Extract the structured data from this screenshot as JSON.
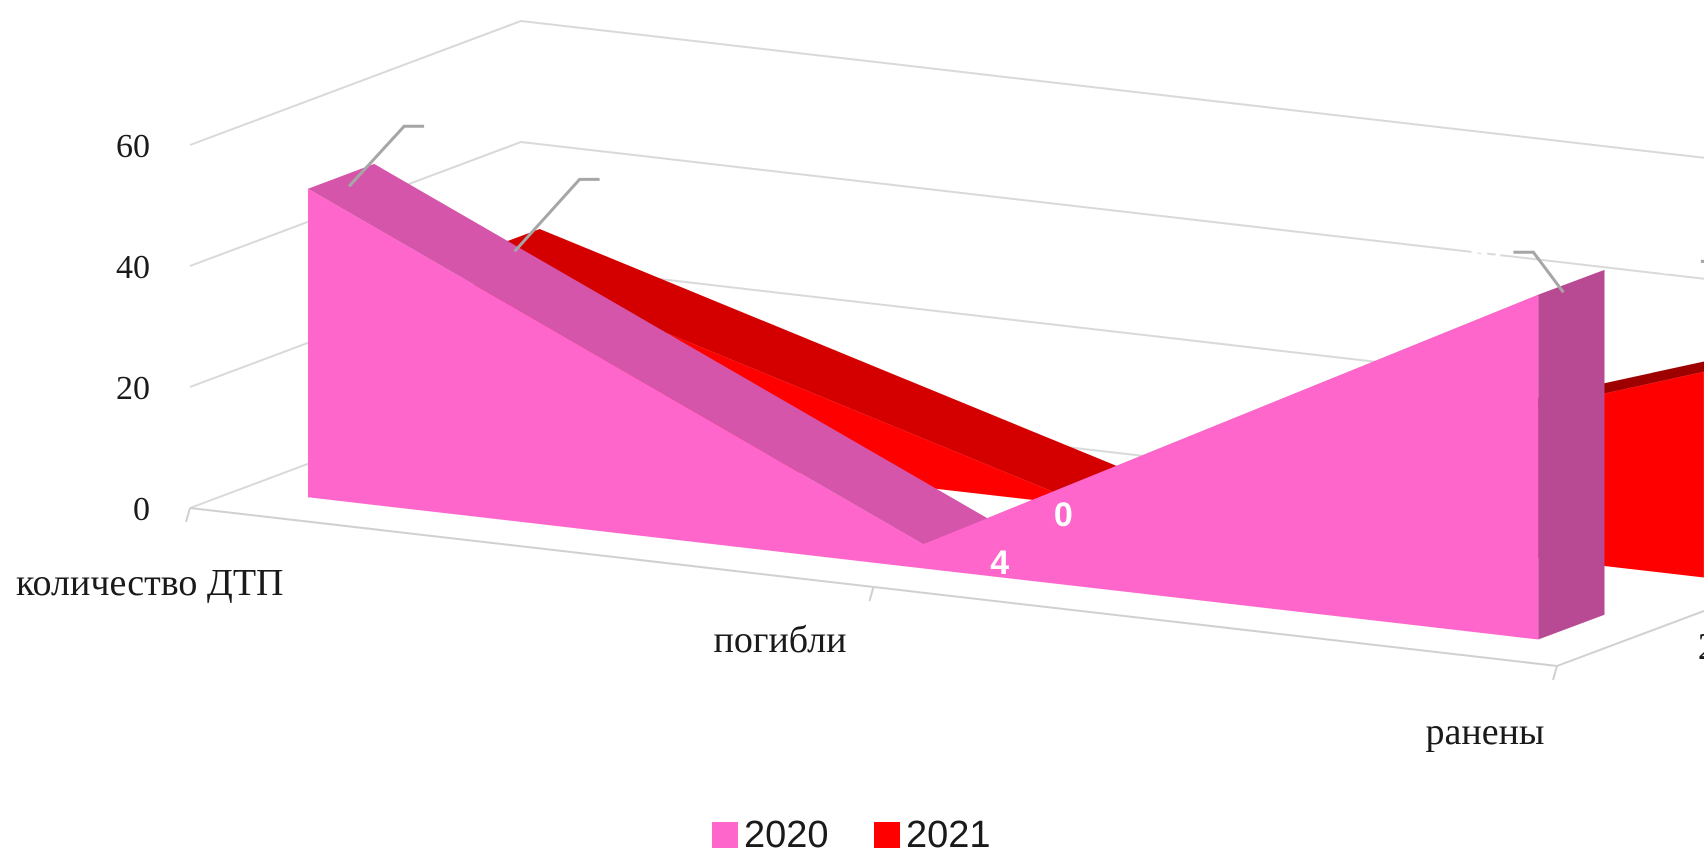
{
  "chart_data": {
    "type": "area",
    "variant": "3d-area",
    "categories": [
      "количество ДТП",
      "погибли",
      "ранены"
    ],
    "depth_labels": [
      "2020",
      "2021"
    ],
    "series": [
      {
        "name": "2020",
        "values": [
          51,
          4,
          57
        ],
        "color": "#ff66cc"
      },
      {
        "name": "2021",
        "values": [
          30,
          0,
          34
        ],
        "color": "#ff0000"
      }
    ],
    "y_ticks": [
      "0",
      "20",
      "40",
      "60"
    ],
    "ylim": [
      0,
      60
    ],
    "grid": true,
    "legend": "bottom",
    "title": "",
    "xlabel": "",
    "ylabel": ""
  }
}
